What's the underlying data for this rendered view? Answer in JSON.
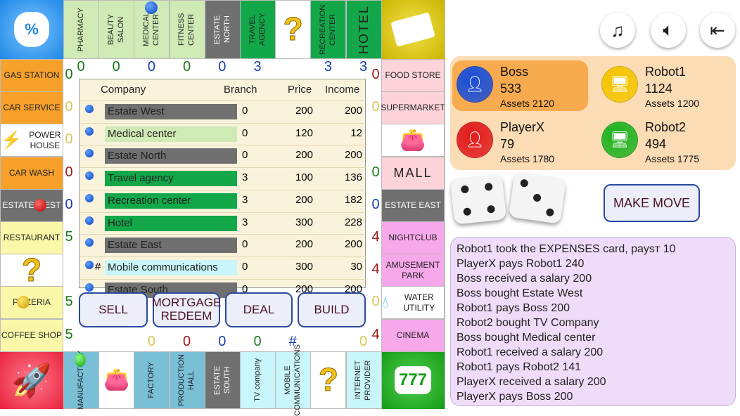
{
  "board": {
    "corners": {
      "top_left": "%",
      "top_right": "cash",
      "bottom_left": "rocket",
      "bottom_right": "777"
    },
    "top_row": [
      {
        "label": "PHARMACY",
        "color": "#cfeab5",
        "text": "#222"
      },
      {
        "label": "BEAUTY SALON",
        "color": "#cfeab5",
        "text": "#222"
      },
      {
        "label": "MEDICAL CENTER",
        "color": "#cfeab5",
        "text": "#222"
      },
      {
        "label": "FITNESS CENTER",
        "color": "#cfeab5",
        "text": "#222"
      },
      {
        "label": "ESTATE NORTH",
        "color": "#707070",
        "text": "#fff"
      },
      {
        "label": "TRAVEL AGENCY",
        "color": "#12a84a",
        "text": "#222"
      },
      {
        "label": "?",
        "color": "#ffffff",
        "text": "#f2c21b"
      },
      {
        "label": "RECREATION CENTER",
        "color": "#12a84a",
        "text": "#222"
      },
      {
        "label": "HOTEL",
        "color": "#12a84a",
        "text": "#222"
      }
    ],
    "left_col": [
      {
        "label": "GAS STATION",
        "color": "#f7a12a",
        "text": "#222"
      },
      {
        "label": "CAR SERVICE",
        "color": "#f7a12a",
        "text": "#222"
      },
      {
        "label": "POWER HOUSE",
        "color": "#ffffff",
        "text": "#222"
      },
      {
        "label": "CAR WASH",
        "color": "#f7a12a",
        "text": "#222"
      },
      {
        "label": "ESTATE WEST",
        "color": "#707070",
        "text": "#fff"
      },
      {
        "label": "RESTAURANT",
        "color": "#fbf7a8",
        "text": "#222"
      },
      {
        "label": "?",
        "color": "#ffffff",
        "text": "#f2c21b"
      },
      {
        "label": "PIZZERIA",
        "color": "#fbf7a8",
        "text": "#222"
      },
      {
        "label": "COFFEE SHOP",
        "color": "#fbf7a8",
        "text": "#222"
      }
    ],
    "right_col": [
      {
        "label": "FOOD STORE",
        "color": "#fbd3d8",
        "text": "#222"
      },
      {
        "label": "SUPERMARKET",
        "color": "#fbd3d8",
        "text": "#222"
      },
      {
        "label": "purse",
        "color": "#ffffff",
        "text": "#c0282a"
      },
      {
        "label": "MALL",
        "color": "#fbd3d8",
        "text": "#222"
      },
      {
        "label": "ESTATE EAST",
        "color": "#707070",
        "text": "#fff"
      },
      {
        "label": "NIGHTCLUB",
        "color": "#f7a8ea",
        "text": "#222"
      },
      {
        "label": "AMUSEMENT PARK",
        "color": "#f7a8ea",
        "text": "#222"
      },
      {
        "label": "WATER UTILITY",
        "color": "#ffffff",
        "text": "#222"
      },
      {
        "label": "CINEMA",
        "color": "#f7a8ea",
        "text": "#222"
      }
    ],
    "bottom_row": [
      {
        "label": "MANUFACTORY",
        "color": "#79bfd6",
        "text": "#222"
      },
      {
        "label": "purse",
        "color": "#ffffff",
        "text": "#c0282a"
      },
      {
        "label": "FACTORY",
        "color": "#79bfd6",
        "text": "#222"
      },
      {
        "label": "PRODUCTION HALL",
        "color": "#79bfd6",
        "text": "#222"
      },
      {
        "label": "ESTATE SOUTH",
        "color": "#707070",
        "text": "#fff"
      },
      {
        "label": "TV company",
        "color": "#c8f6fa",
        "text": "#222"
      },
      {
        "label": "MOBILE COMMUNICATIONS",
        "color": "#c8f6fa",
        "text": "#222"
      },
      {
        "label": "?",
        "color": "#ffffff",
        "text": "#f2c21b"
      },
      {
        "label": "INTERNET PROVIDER",
        "color": "#c8f6fa",
        "text": "#222"
      }
    ],
    "top_nums": [
      [
        "0",
        "#1a7a1a"
      ],
      [
        "0",
        "#1a7a1a"
      ],
      [
        "0",
        "#1a3fa8"
      ],
      [
        "0",
        "#1a7a1a"
      ],
      [
        "0",
        "#1a3fa8"
      ],
      [
        "3",
        "#1a3fa8"
      ],
      [
        "",
        ""
      ],
      [
        "3",
        "#1a3fa8"
      ],
      [
        "3",
        "#1a3fa8"
      ]
    ],
    "left_nums": [
      [
        "0",
        "#1a7a1a"
      ],
      [
        "0",
        "#d8c75a"
      ],
      [
        "0",
        "#d8c75a"
      ],
      [
        "0",
        "#a01818"
      ],
      [
        "0",
        "#1a3fa8"
      ],
      [
        "5",
        "#1a7a1a"
      ],
      [
        "",
        ""
      ],
      [
        "5",
        "#1a7a1a"
      ],
      [
        "5",
        "#1a7a1a"
      ]
    ],
    "right_nums": [
      [
        "0",
        "#a01818"
      ],
      [
        "0",
        "#d8c75a"
      ],
      [
        "",
        ""
      ],
      [
        "0",
        "#1a7a1a"
      ],
      [
        "0",
        "#1a3fa8"
      ],
      [
        "4",
        "#a01818"
      ],
      [
        "4",
        "#a01818"
      ],
      [
        "0",
        "#d8c75a"
      ],
      [
        "4",
        "#a01818"
      ]
    ],
    "bottom_nums": [
      [
        "",
        ""
      ],
      [
        "",
        ""
      ],
      [
        "0",
        "#d8c75a"
      ],
      [
        "0",
        "#a01818"
      ],
      [
        "0",
        "#1a3fa8"
      ],
      [
        "0",
        "#1a7a1a"
      ],
      [
        "#",
        "#1a3fa8"
      ],
      [
        "",
        ""
      ],
      [
        "0",
        "#d8c75a"
      ]
    ]
  },
  "table": {
    "headers": {
      "company": "Company",
      "branch": "Branch",
      "price": "Price",
      "income": "Income"
    },
    "rows": [
      {
        "mark": "",
        "company": "Estate West",
        "branch": "0",
        "price": "200",
        "income": "200",
        "color": "#707070"
      },
      {
        "mark": "",
        "company": "Medical center",
        "branch": "0",
        "price": "120",
        "income": "12",
        "color": "#cfeab5"
      },
      {
        "mark": "",
        "company": "Estate North",
        "branch": "0",
        "price": "200",
        "income": "200",
        "color": "#707070"
      },
      {
        "mark": "",
        "company": "Travel agency",
        "branch": "3",
        "price": "100",
        "income": "136",
        "color": "#12a84a"
      },
      {
        "mark": "",
        "company": "Recreation center",
        "branch": "3",
        "price": "200",
        "income": "182",
        "color": "#12a84a"
      },
      {
        "mark": "",
        "company": "Hotel",
        "branch": "3",
        "price": "300",
        "income": "228",
        "color": "#12a84a"
      },
      {
        "mark": "",
        "company": "Estate East",
        "branch": "0",
        "price": "200",
        "income": "200",
        "color": "#707070"
      },
      {
        "mark": "#",
        "company": "Mobile communications",
        "branch": "0",
        "price": "300",
        "income": "30",
        "color": "#c8f6fa"
      },
      {
        "mark": "",
        "company": "Estate South",
        "branch": "0",
        "price": "200",
        "income": "200",
        "color": "#707070"
      }
    ]
  },
  "actions": {
    "sell": "SELL",
    "mortgage": "MORTGAGE",
    "redeem": "REDEEM",
    "deal": "DEAL",
    "build": "BUILD"
  },
  "top_buttons": {
    "music": "music-icon",
    "sound": "speaker-icon",
    "exit": "exit-icon"
  },
  "players": [
    {
      "name": "Boss",
      "money": "533",
      "assets": "Assets 2120",
      "color": "#1a4fd8",
      "active": true
    },
    {
      "name": "Robot1",
      "money": "1124",
      "assets": "Assets 1200",
      "color": "#f5c400",
      "active": false
    },
    {
      "name": "PlayerX",
      "money": "79",
      "assets": "Assets 1780",
      "color": "#e01b1b",
      "active": false
    },
    {
      "name": "Robot2",
      "money": "494",
      "assets": "Assets 1775",
      "color": "#1fb21f",
      "active": false
    }
  ],
  "dice": [
    4,
    3
  ],
  "make_move": "MAKE MOVE",
  "log": [
    "Robot1 took the EXPENSES card, paysт 10",
    "PlayerX pays Robot1 240",
    "Boss received a salary 200",
    "Boss bought Estate West",
    "Robot1 pays Boss 200",
    "Robot2 bought TV Company",
    "Boss bought Medical center",
    "Robot1 received a salary 200",
    "Robot1 pays Robot2 141",
    "PlayerX received a salary 200",
    "PlayerX pays Boss 200"
  ]
}
